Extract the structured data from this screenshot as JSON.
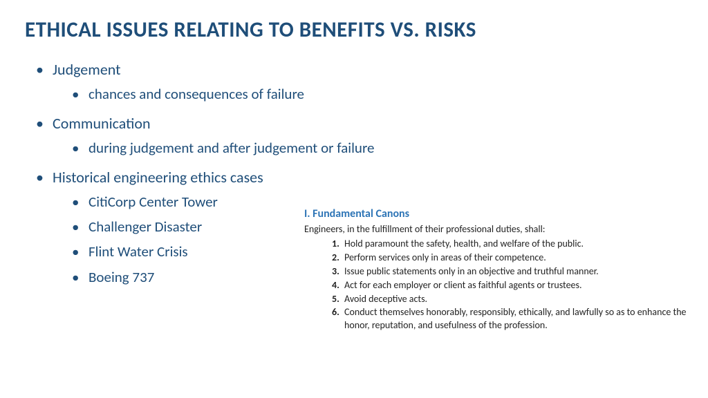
{
  "title": "ETHICAL ISSUES RELATING TO BENEFITS VS. RISKS",
  "colors": {
    "heading": "#1f4e79",
    "body": "#1f4e79",
    "canons_title": "#2e75b6",
    "canons_text": "#222222",
    "background": "#ffffff"
  },
  "typography": {
    "title_fontsize": 31,
    "title_weight": 700,
    "level1_fontsize": 22,
    "level2_fontsize": 21,
    "canons_title_fontsize": 16,
    "canons_body_fontsize": 14,
    "font_family": "Calibri"
  },
  "bullets": [
    {
      "label": "Judgement",
      "children": [
        "chances and consequences of failure"
      ]
    },
    {
      "label": "Communication",
      "children": [
        "during judgement and after judgement or failure"
      ]
    },
    {
      "label": "Historical engineering ethics cases",
      "children": [
        "CitiCorp Center Tower",
        "Challenger Disaster",
        "Flint Water Crisis",
        "Boeing 737"
      ]
    }
  ],
  "canons": {
    "title": "I. Fundamental Canons",
    "intro": "Engineers, in the fulfillment of their professional duties, shall:",
    "items": [
      "Hold paramount the safety, health, and welfare of the public.",
      "Perform services only in areas of their competence.",
      "Issue public statements only in an objective and truthful manner.",
      "Act for each employer or client as faithful agents or trustees.",
      "Avoid deceptive acts.",
      "Conduct themselves honorably, responsibly, ethically, and lawfully so as to enhance the honor, reputation, and usefulness of the profession."
    ]
  }
}
